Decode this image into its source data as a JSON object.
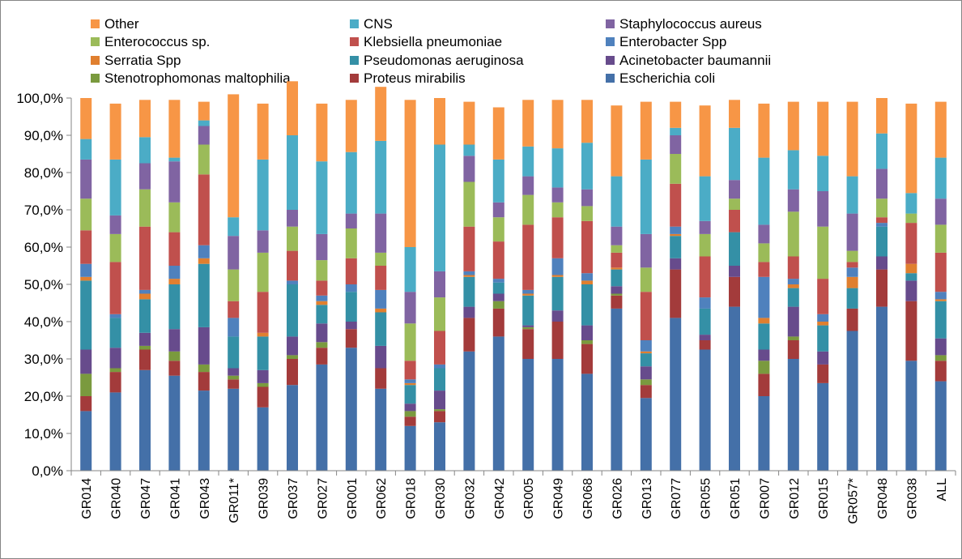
{
  "chart_data": {
    "type": "bar",
    "stacked": true,
    "percent": true,
    "title": "",
    "xlabel": "",
    "ylabel": "",
    "ylim": [
      0,
      100
    ],
    "grid": false,
    "legend_position": "top",
    "yticks": [
      "0,0%",
      "10,0%",
      "20,0%",
      "30,0%",
      "40,0%",
      "50,0%",
      "60,0%",
      "70,0%",
      "80,0%",
      "90,0%",
      "100,0%"
    ],
    "categories": [
      "GR014",
      "GR040",
      "GR047",
      "GR041",
      "GR043",
      "GR011*",
      "GR039",
      "GR037",
      "GR027",
      "GR001",
      "GR062",
      "GR018",
      "GR030",
      "GR032",
      "GR042",
      "GR005",
      "GR049",
      "GR068",
      "GR026",
      "GR013",
      "GR077",
      "GR055",
      "GR051",
      "GR007",
      "GR012",
      "GR015",
      "GR057*",
      "GR048",
      "GR038",
      "ALL"
    ],
    "legend_order": [
      "Other",
      "CNS",
      "Staphylococcus aureus",
      "Enterococcus sp.",
      "Klebsiella pneumoniae",
      "Enterobacter Spp",
      "Serratia Spp",
      "Pseudomonas aeruginosa",
      "Acinetobacter baumannii",
      "Stenotrophomonas maltophilia",
      "Proteus mirabilis",
      "Escherichia coli"
    ],
    "series": [
      {
        "name": "Escherichia coli",
        "color": "#4470A8",
        "values": [
          16,
          21,
          27,
          25.5,
          21.5,
          22,
          17,
          23,
          28.5,
          33,
          22,
          12,
          13,
          32,
          36,
          30,
          30,
          26,
          43.5,
          19.5,
          41,
          32.5,
          44,
          20,
          30,
          23.5,
          37.5,
          44,
          29.5,
          24
        ]
      },
      {
        "name": "Proteus mirabilis",
        "color": "#A33B3B",
        "values": [
          4,
          5.5,
          5.5,
          4,
          5,
          2.5,
          5.5,
          7,
          4.5,
          5,
          5.5,
          2.5,
          3,
          9,
          7.5,
          8,
          10,
          8,
          3.5,
          3.5,
          13,
          2.5,
          8,
          6,
          5,
          5,
          6,
          10,
          16,
          5.5
        ]
      },
      {
        "name": "Stenotrophomonas maltophilia",
        "color": "#7A9A3E",
        "values": [
          6,
          1,
          1,
          2.5,
          2,
          1,
          1,
          1,
          1.5,
          0,
          0,
          1.5,
          0.5,
          0,
          2,
          0.5,
          0,
          1,
          0.5,
          1.5,
          0,
          0,
          0,
          3.5,
          1,
          0,
          0,
          0,
          0,
          1.5
        ]
      },
      {
        "name": "Acinetobacter baumannii",
        "color": "#674B8C",
        "values": [
          6.5,
          5.5,
          3.5,
          6,
          10,
          2,
          3.5,
          5,
          5,
          2,
          6,
          2,
          5,
          3,
          2,
          0.5,
          3,
          4,
          2,
          3.5,
          3,
          1.5,
          3,
          3,
          8,
          3.5,
          0,
          3.5,
          5.5,
          4.5
        ]
      },
      {
        "name": "Pseudomonas aeruginosa",
        "color": "#3490A6",
        "values": [
          18.5,
          8,
          9,
          12,
          17,
          8.5,
          9,
          14,
          5,
          8,
          9,
          5,
          6,
          8,
          3,
          8,
          9,
          11,
          4.5,
          3.5,
          6,
          7,
          9,
          7,
          5,
          7,
          5.5,
          8,
          2,
          10
        ]
      },
      {
        "name": "Serratia Spp",
        "color": "#E07F2F",
        "values": [
          1,
          0,
          1.5,
          1.5,
          1.5,
          0,
          1,
          0,
          1,
          0,
          1,
          0.5,
          0,
          0.5,
          0,
          0.5,
          0.5,
          1,
          0.5,
          0.5,
          0.5,
          0,
          0,
          1.5,
          1,
          1,
          3,
          0,
          2.5,
          0.5
        ]
      },
      {
        "name": "Enterobacter Spp",
        "color": "#4F81BD",
        "values": [
          3.5,
          1,
          1,
          3.5,
          3.5,
          5,
          0,
          1,
          1.5,
          2,
          5,
          1,
          1,
          1,
          1,
          1,
          4.5,
          2,
          0,
          3,
          2,
          3,
          0,
          11,
          1.5,
          2,
          2.5,
          1,
          0,
          2
        ]
      },
      {
        "name": "Klebsiella pneumoniae",
        "color": "#C0504D",
        "values": [
          9,
          14,
          17,
          9,
          19,
          4.5,
          11,
          8,
          4,
          7,
          6.5,
          5,
          9,
          12,
          10,
          17.5,
          11,
          14,
          4,
          13,
          11.5,
          11,
          6,
          4,
          6,
          9.5,
          1.5,
          1.5,
          11,
          10.5
        ]
      },
      {
        "name": "Enterococcus sp.",
        "color": "#9BBB59",
        "values": [
          8.5,
          7.5,
          10,
          8,
          8,
          8.5,
          10.5,
          6.5,
          5.5,
          8,
          3.5,
          10,
          9,
          12,
          6.5,
          8,
          4,
          4,
          2,
          6.5,
          8,
          6,
          3,
          5,
          12,
          14,
          3,
          5,
          2.5,
          7.5
        ]
      },
      {
        "name": "Staphylococcus aureus",
        "color": "#8064A2",
        "values": [
          10.5,
          5,
          7,
          11,
          5,
          9,
          6,
          4.5,
          7,
          4,
          10.5,
          8.5,
          7,
          7,
          4,
          5,
          4,
          4.5,
          5,
          9,
          5,
          3.5,
          5,
          5,
          6,
          9.5,
          10,
          8,
          0,
          7
        ]
      },
      {
        "name": "CNS",
        "color": "#4BACC6",
        "values": [
          5.5,
          15,
          7,
          1,
          1.5,
          5,
          19,
          20,
          19.5,
          16.5,
          19.5,
          12,
          34,
          3,
          11.5,
          8,
          10.5,
          12.5,
          13.5,
          20,
          2,
          12,
          14,
          18,
          10.5,
          9.5,
          10,
          9.5,
          5.5,
          11
        ]
      },
      {
        "name": "Other",
        "color": "#F79646",
        "values": [
          11,
          15,
          10,
          15.5,
          5,
          33,
          15,
          14.5,
          15.5,
          14,
          14.5,
          39.5,
          12.5,
          11.5,
          14,
          12.5,
          13,
          11.5,
          19,
          15.5,
          7,
          19,
          7.5,
          14.5,
          13,
          14.5,
          20,
          9.5,
          24,
          15
        ]
      }
    ]
  }
}
